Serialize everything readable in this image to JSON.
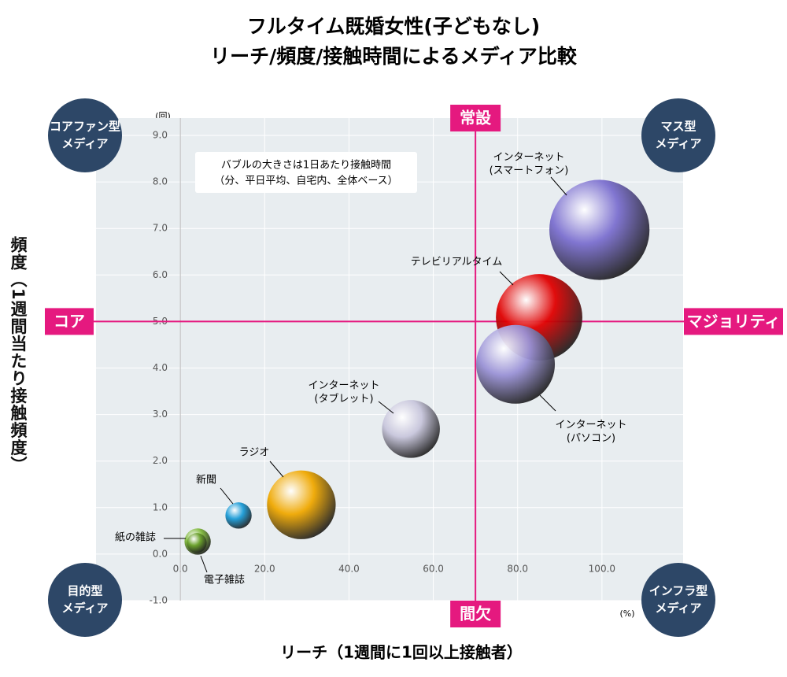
{
  "chart_data": {
    "type": "bubble",
    "title": [
      "フルタイム既婚女性(子どもなし)",
      "リーチ/頻度/接触時間によるメディア比較"
    ],
    "x_label": "リーチ（1週間に1回以上接触者）",
    "y_label": "頻度（1週間当たり接触頻度）",
    "x_unit": "(%)",
    "y_unit": "(回)",
    "note": [
      "バブルの大きさは1日あたり接触時間",
      "（分、平日平均、自宅内、全体ベース）"
    ],
    "xlim": [
      -20,
      120
    ],
    "ylim": [
      -1,
      9
    ],
    "xticks": [
      {
        "value": 0,
        "label": "0.0"
      },
      {
        "value": 20,
        "label": "20.0"
      },
      {
        "value": 40,
        "label": "40.0"
      },
      {
        "value": 60,
        "label": "60.0"
      },
      {
        "value": 80,
        "label": "80.0"
      },
      {
        "value": 100,
        "label": "100.0"
      }
    ],
    "yticks": [
      {
        "value": -1,
        "label": "-1.0"
      },
      {
        "value": 0,
        "label": "0.0"
      },
      {
        "value": 1,
        "label": "1.0"
      },
      {
        "value": 2,
        "label": "2.0"
      },
      {
        "value": 3,
        "label": "3.0"
      },
      {
        "value": 4,
        "label": "4.0"
      },
      {
        "value": 5,
        "label": "5.0"
      },
      {
        "value": 6,
        "label": "6.0"
      },
      {
        "value": 7,
        "label": "7.0"
      },
      {
        "value": 8,
        "label": "8.0"
      },
      {
        "value": 9,
        "label": "9.0"
      }
    ],
    "labels": [
      [
        "インターネット",
        "(スマートフォン)"
      ],
      [
        "テレビリアルタイム"
      ],
      [
        "インターネット",
        "(パソコン)"
      ],
      [
        "インターネット",
        "(タブレット)"
      ],
      [
        "ラジオ"
      ],
      [
        "新聞"
      ],
      [
        "紙の雑誌"
      ],
      [
        "電子雑誌"
      ]
    ],
    "x": [
      99.4,
      85.1,
      79.5,
      54.7,
      28.7,
      13.8,
      4.1,
      3.9
    ],
    "values": [
      6.97,
      5.09,
      4.08,
      2.69,
      1.06,
      0.83,
      0.27,
      0.24
    ],
    "sizes": [
      102,
      76,
      63,
      34,
      48,
      7,
      7,
      4
    ],
    "colors": [
      "#7b6fcf",
      "#e00000",
      "#9a92d6",
      "#c8c6dc",
      "#f0a800",
      "#1a9bd7",
      "#7fb83a",
      "#6aa02c"
    ],
    "reference_x": 70,
    "reference_y": 5,
    "reference_color": "#e5197f",
    "reference_labels": {
      "top": "常設",
      "bottom": "間欠",
      "left": "コア",
      "right": "マジョリティ"
    },
    "quadrants": [
      [
        "コアファン型",
        "メディア"
      ],
      [
        "マス型",
        "メディア"
      ],
      [
        "目的型",
        "メディア"
      ],
      [
        "インフラ型",
        "メディア"
      ]
    ]
  }
}
